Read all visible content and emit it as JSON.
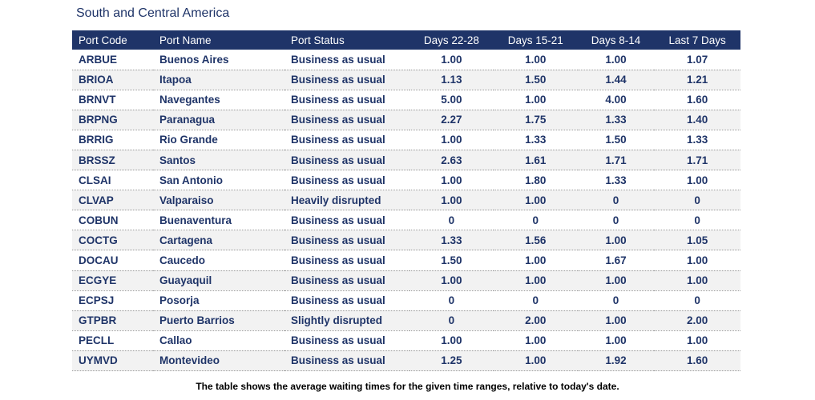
{
  "title": "South and Central America",
  "columns": [
    "Port Code",
    "Port Name",
    "Port Status",
    "Days 22-28",
    "Days 15-21",
    "Days 8-14",
    "Last 7 Days"
  ],
  "rows": [
    [
      "ARBUE",
      "Buenos Aires",
      "Business as usual",
      "1.00",
      "1.00",
      "1.00",
      "1.07"
    ],
    [
      "BRIOA",
      "Itapoa",
      "Business as usual",
      "1.13",
      "1.50",
      "1.44",
      "1.21"
    ],
    [
      "BRNVT",
      "Navegantes",
      "Business as usual",
      "5.00",
      "1.00",
      "4.00",
      "1.60"
    ],
    [
      "BRPNG",
      "Paranagua",
      "Business as usual",
      "2.27",
      "1.75",
      "1.33",
      "1.40"
    ],
    [
      "BRRIG",
      "Rio Grande",
      "Business as usual",
      "1.00",
      "1.33",
      "1.50",
      "1.33"
    ],
    [
      "BRSSZ",
      "Santos",
      "Business as usual",
      "2.63",
      "1.61",
      "1.71",
      "1.71"
    ],
    [
      "CLSAI",
      "San Antonio",
      "Business as usual",
      "1.00",
      "1.80",
      "1.33",
      "1.00"
    ],
    [
      "CLVAP",
      "Valparaiso",
      "Heavily disrupted",
      "1.00",
      "1.00",
      "0",
      "0"
    ],
    [
      "COBUN",
      "Buenaventura",
      "Business as usual",
      "0",
      "0",
      "0",
      "0"
    ],
    [
      "COCTG",
      "Cartagena",
      "Business as usual",
      "1.33",
      "1.56",
      "1.00",
      "1.05"
    ],
    [
      "DOCAU",
      "Caucedo",
      "Business as usual",
      "1.50",
      "1.00",
      "1.67",
      "1.00"
    ],
    [
      "ECGYE",
      "Guayaquil",
      "Business as usual",
      "1.00",
      "1.00",
      "1.00",
      "1.00"
    ],
    [
      "ECPSJ",
      "Posorja",
      "Business as usual",
      "0",
      "0",
      "0",
      "0"
    ],
    [
      "GTPBR",
      "Puerto Barrios",
      "Slightly disrupted",
      "0",
      "2.00",
      "1.00",
      "2.00"
    ],
    [
      "PECLL",
      "Callao",
      "Business as usual",
      "1.00",
      "1.00",
      "1.00",
      "1.00"
    ],
    [
      "UYMVD",
      "Montevideo",
      "Business as usual",
      "1.25",
      "1.00",
      "1.92",
      "1.60"
    ]
  ],
  "caption": "The table shows the average waiting times for the given time ranges, relative to today's date.",
  "colors": {
    "header_bg": "#1f3468",
    "text": "#1f3468",
    "alt_row": "#f2f2f2"
  }
}
